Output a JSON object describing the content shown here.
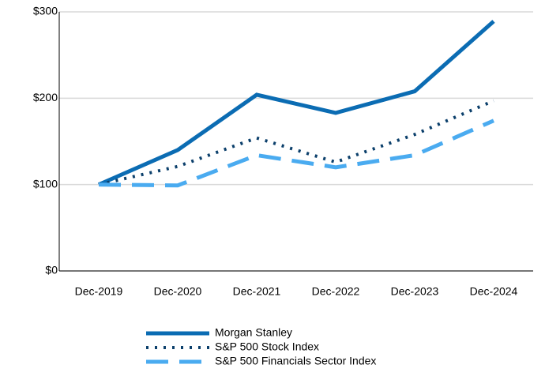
{
  "chart_data": {
    "type": "line",
    "categories": [
      "Dec-2019",
      "Dec-2020",
      "Dec-2021",
      "Dec-2022",
      "Dec-2023",
      "Dec-2024"
    ],
    "series": [
      {
        "name": "Morgan Stanley",
        "color": "#0b6cb3",
        "style": "solid",
        "values": [
          100,
          140,
          204,
          183,
          208,
          289
        ]
      },
      {
        "name": "S&P 500 Stock Index",
        "color": "#0b3f6b",
        "style": "dotted",
        "values": [
          100,
          121,
          154,
          126,
          158,
          197
        ]
      },
      {
        "name": "S&P 500 Financials Sector Index",
        "color": "#4aabf0",
        "style": "dashed",
        "values": [
          100,
          99,
          134,
          120,
          134,
          174
        ]
      }
    ],
    "ylim": [
      0,
      300
    ],
    "yticks": [
      {
        "value": 0,
        "label": "$0"
      },
      {
        "value": 100,
        "label": "$100"
      },
      {
        "value": 200,
        "label": "$200"
      },
      {
        "value": 300,
        "label": "$300"
      }
    ],
    "grid": true
  }
}
